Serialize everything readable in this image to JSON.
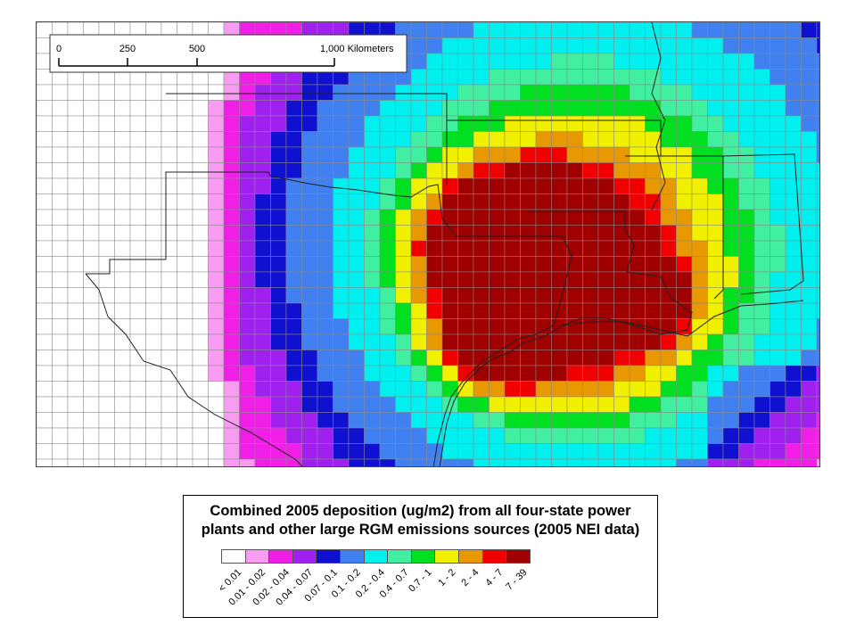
{
  "scale_bar": {
    "ticks": [
      "0",
      "250",
      "500",
      "1,000 Kilometers"
    ]
  },
  "legend": {
    "title_line1": "Combined 2005 deposition (ug/m2) from all four-state power",
    "title_line2": "plants and other large RGM emissions sources (2005 NEI data)",
    "classes": [
      {
        "label": "< 0.01",
        "color": "#ffffff"
      },
      {
        "label": "0.01 - 0.02",
        "color": "#f79cf0"
      },
      {
        "label": "0.02 - 0.04",
        "color": "#f01ee6"
      },
      {
        "label": "0.04 - 0.07",
        "color": "#a020f0"
      },
      {
        "label": "0.07 - 0.1",
        "color": "#1010d0"
      },
      {
        "label": "0.1 - 0.2",
        "color": "#4080f0"
      },
      {
        "label": "0.2 - 0.4",
        "color": "#00f0f0"
      },
      {
        "label": "0.4 - 0.7",
        "color": "#40f0a0"
      },
      {
        "label": "0.7 - 1",
        "color": "#00e020"
      },
      {
        "label": "1 - 2",
        "color": "#f0f000"
      },
      {
        "label": "2 - 4",
        "color": "#e89800"
      },
      {
        "label": "4 - 7",
        "color": "#f00000"
      },
      {
        "label": "7 - 39",
        "color": "#a00000"
      }
    ]
  }
}
